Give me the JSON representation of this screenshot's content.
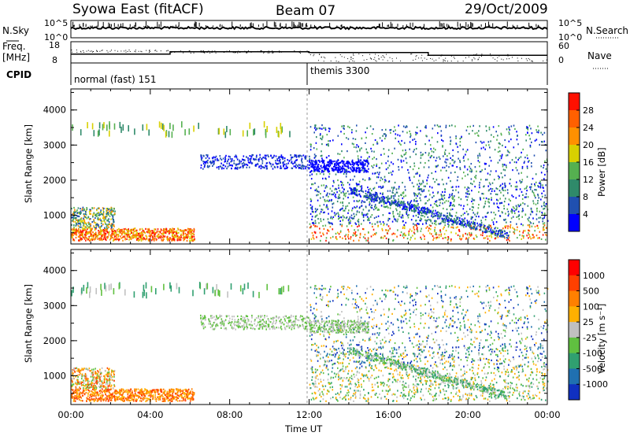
{
  "header": {
    "station": "Syowa East (fitACF)",
    "beam": "Beam 07",
    "date": "29/Oct/2009"
  },
  "side_labels": {
    "nsky": "N.Sky",
    "nsearch": "N.Search",
    "freq_line1": "Freq.",
    "freq_line2": "[MHz]",
    "nave": "Nave",
    "cpid": "CPID"
  },
  "cpid_modes": [
    {
      "label": "normal (fast) 151",
      "start_hour": 0
    },
    {
      "label": "themis 3300",
      "start_hour": 12
    }
  ],
  "colors": {
    "power_scale": [
      "#0000ff",
      "#2050b0",
      "#2f8a6a",
      "#55b050",
      "#d8d000",
      "#ff9000",
      "#ff6000",
      "#ff1000"
    ],
    "velocity_scale": [
      "#1030c0",
      "#2070b0",
      "#30a070",
      "#60c040",
      "#c0c0c0",
      "#ffb000",
      "#ff8000",
      "#ff4000",
      "#ff0000"
    ]
  },
  "chart_data": [
    {
      "type": "line",
      "title": "N.Sky / N.Search",
      "y_ticks_left": [
        "10^5",
        "10^0"
      ],
      "y_ticks_right": [
        "10^5",
        "10^0"
      ],
      "xlim": [
        0,
        24
      ],
      "series": [
        {
          "name": "N.Sky"
        },
        {
          "name": "N.Search"
        }
      ]
    },
    {
      "type": "line",
      "y_ticks_left": [
        "18",
        "8"
      ],
      "y_ticks_right": [
        "60",
        "0"
      ],
      "xlim": [
        0,
        24
      ],
      "series": [
        {
          "name": "Freq.",
          "x": [
            0,
            5,
            5,
            12,
            12,
            18,
            18,
            24
          ],
          "values": [
            12.2,
            12.2,
            13.3,
            13.3,
            12.9,
            12.9,
            11.6,
            11.6
          ]
        },
        {
          "name": "Nave"
        }
      ]
    },
    {
      "type": "heatmap",
      "ylabel": "Slant Range [km]",
      "y_ticks": [
        "4000",
        "3000",
        "2000",
        "1000"
      ],
      "ylim": [
        180,
        4600
      ],
      "xlim": [
        0,
        24
      ],
      "colorbar_label": "Power [dB]",
      "colorbar_ticks": [
        "28",
        "24",
        "20",
        "16",
        "12",
        "8",
        "4"
      ]
    },
    {
      "type": "heatmap",
      "ylabel": "Slant Range [km]",
      "y_ticks": [
        "4000",
        "3000",
        "2000",
        "1000"
      ],
      "ylim": [
        180,
        4600
      ],
      "xlim": [
        0,
        24
      ],
      "xlabel": "Time UT",
      "x_tick_labels": [
        "00:00",
        "04:00",
        "08:00",
        "12:00",
        "16:00",
        "20:00",
        "00:00"
      ],
      "colorbar_label": "Velocity [m s⁻¹]",
      "colorbar_ticks": [
        "1000",
        "500",
        "100",
        "25",
        "-25",
        "-100",
        "-500",
        "-1000"
      ]
    }
  ]
}
